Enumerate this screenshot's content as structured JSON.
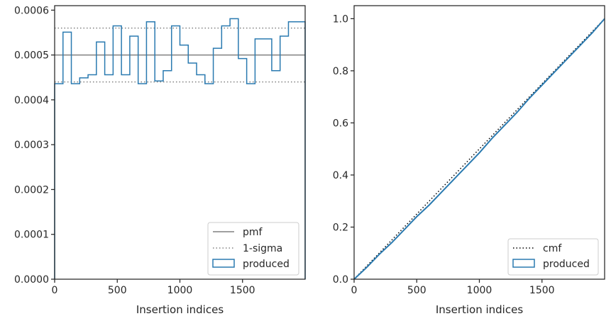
{
  "chart_data": [
    {
      "type": "histogram-step",
      "xlabel": "Insertion indices",
      "xlim": [
        0,
        2000
      ],
      "ylim": [
        0,
        0.00061
      ],
      "xticks": [
        0,
        500,
        1000,
        1500
      ],
      "xtick_labels": [
        "0",
        "500",
        "1000",
        "1500"
      ],
      "yticks": [
        0,
        0.0001,
        0.0002,
        0.0003,
        0.0004,
        0.0005,
        0.0006
      ],
      "ytick_labels": [
        "0.0000",
        "0.0001",
        "0.0002",
        "0.0003",
        "0.0004",
        "0.0005",
        "0.0006"
      ],
      "bin_edges": [
        0,
        66.7,
        133.3,
        200,
        266.7,
        333.3,
        400,
        466.7,
        533.3,
        600,
        666.7,
        733.3,
        800,
        866.7,
        933.3,
        1000,
        1066.7,
        1133.3,
        1200,
        1266.7,
        1333.3,
        1400,
        1466.7,
        1533.3,
        1600,
        1666.7,
        1733.3,
        1800,
        1866.7,
        1933.3,
        2000
      ],
      "produced": [
        0.000436,
        0.000551,
        0.000436,
        0.000449,
        0.000456,
        0.000529,
        0.000456,
        0.000565,
        0.000456,
        0.000542,
        0.000436,
        0.000574,
        0.000442,
        0.000465,
        0.000565,
        0.000522,
        0.000482,
        0.000456,
        0.000436,
        0.000515,
        0.000565,
        0.000581,
        0.000492,
        0.000436,
        0.000536,
        0.000536,
        0.000465,
        0.000542,
        0.000574,
        0.000574
      ],
      "pmf": 0.0005,
      "sigma_band": [
        0.00044,
        0.00056
      ],
      "legend": [
        "pmf",
        "1-sigma",
        "produced"
      ],
      "legend_location": "lower-right",
      "colors": {
        "produced": "#2a7ab0",
        "pmf": "#808080",
        "sigma": "#808080"
      }
    },
    {
      "type": "line-step",
      "xlabel": "Insertion indices",
      "xlim": [
        0,
        2000
      ],
      "ylim": [
        0,
        1.05
      ],
      "xticks": [
        0,
        500,
        1000,
        1500
      ],
      "xtick_labels": [
        "0",
        "500",
        "1000",
        "1500"
      ],
      "yticks": [
        0,
        0.2,
        0.4,
        0.6,
        0.8,
        1.0
      ],
      "ytick_labels": [
        "0.0",
        "0.2",
        "0.4",
        "0.6",
        "0.8",
        "1.0"
      ],
      "cmf": {
        "x": [
          0,
          2000
        ],
        "y": [
          0,
          1
        ]
      },
      "produced": {
        "x": [
          0,
          100,
          200,
          300,
          400,
          500,
          600,
          700,
          800,
          900,
          1000,
          1100,
          1200,
          1300,
          1400,
          1500,
          1600,
          1700,
          1800,
          1900,
          2000
        ],
        "y": [
          0,
          0.045,
          0.095,
          0.14,
          0.19,
          0.24,
          0.285,
          0.335,
          0.385,
          0.435,
          0.485,
          0.54,
          0.59,
          0.64,
          0.695,
          0.745,
          0.795,
          0.845,
          0.895,
          0.945,
          1.0
        ]
      },
      "legend": [
        "cmf",
        "produced"
      ],
      "legend_location": "lower-right",
      "colors": {
        "produced": "#2a7ab0",
        "cmf": "#000000"
      }
    }
  ]
}
